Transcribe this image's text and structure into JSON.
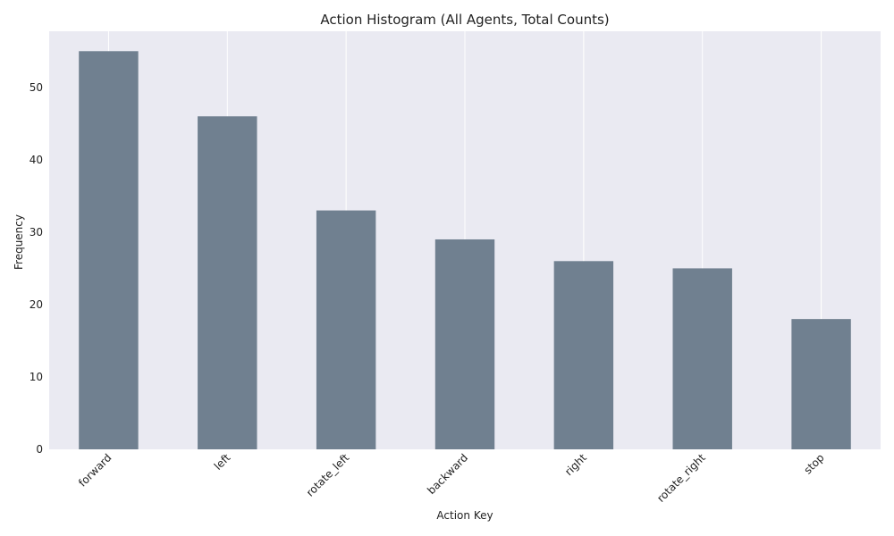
{
  "chart_data": {
    "type": "bar",
    "title": "Action Histogram (All Agents, Total Counts)",
    "xlabel": "Action Key",
    "ylabel": "Frequency",
    "categories": [
      "forward",
      "left",
      "rotate_left",
      "backward",
      "right",
      "rotate_right",
      "stop"
    ],
    "values": [
      55,
      46,
      33,
      29,
      26,
      25,
      18
    ],
    "ylim": [
      0,
      57.75
    ],
    "yticks": [
      0,
      10,
      20,
      30,
      40,
      50
    ],
    "grid": true,
    "bar_color": "#708090",
    "plot_background": "#eaeaf2",
    "grid_color": "#ffffff"
  }
}
